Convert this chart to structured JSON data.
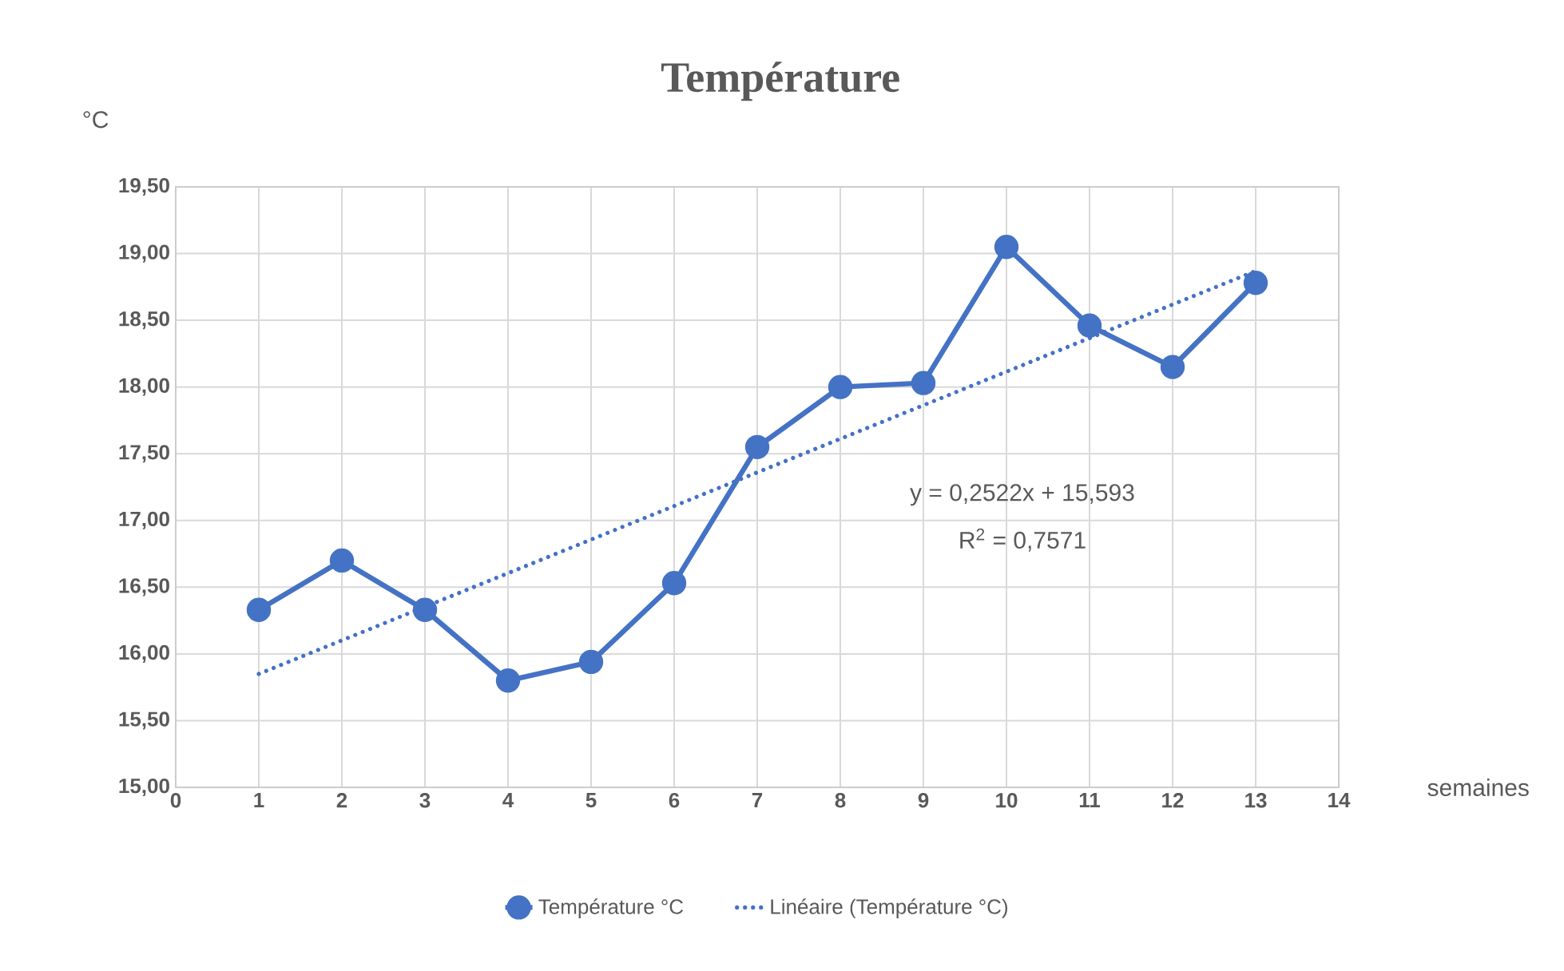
{
  "chart_data": {
    "type": "line",
    "title": "Température",
    "xlabel": "semaines",
    "ylabel": "°C",
    "x": [
      1,
      2,
      3,
      4,
      5,
      6,
      7,
      8,
      9,
      10,
      11,
      12,
      13
    ],
    "series": [
      {
        "name": "Température °C",
        "color": "#4472c4",
        "marker": "circle",
        "line_style": "solid",
        "values": [
          16.33,
          16.7,
          16.33,
          15.8,
          15.94,
          16.53,
          17.55,
          18.0,
          18.03,
          19.05,
          18.46,
          18.15,
          18.78
        ]
      },
      {
        "name": "Linéaire (Température °C)",
        "type": "line",
        "color": "#4472c4",
        "marker": "none",
        "line_style": "dotted",
        "x": [
          1,
          13
        ],
        "values": [
          15.85,
          18.87
        ]
      }
    ],
    "xlim": [
      0,
      14
    ],
    "xticks": [
      0,
      1,
      2,
      3,
      4,
      5,
      6,
      7,
      8,
      9,
      10,
      11,
      12,
      13,
      14
    ],
    "ylim": [
      15,
      19.5
    ],
    "yticks": [
      {
        "value": 15,
        "label": "15,00"
      },
      {
        "value": 15.5,
        "label": "15,50"
      },
      {
        "value": 16,
        "label": "16,00"
      },
      {
        "value": 16.5,
        "label": "16,50"
      },
      {
        "value": 17,
        "label": "17,00"
      },
      {
        "value": 17.5,
        "label": "17,50"
      },
      {
        "value": 18,
        "label": "18,00"
      },
      {
        "value": 18.5,
        "label": "18,50"
      },
      {
        "value": 19,
        "label": "19,00"
      },
      {
        "value": 19.5,
        "label": "19,50"
      }
    ],
    "annotations": [
      "y = 0,2522x + 15,593",
      "R$^{2}$ = 0,7571"
    ],
    "grid": true,
    "legend": "bottom"
  }
}
